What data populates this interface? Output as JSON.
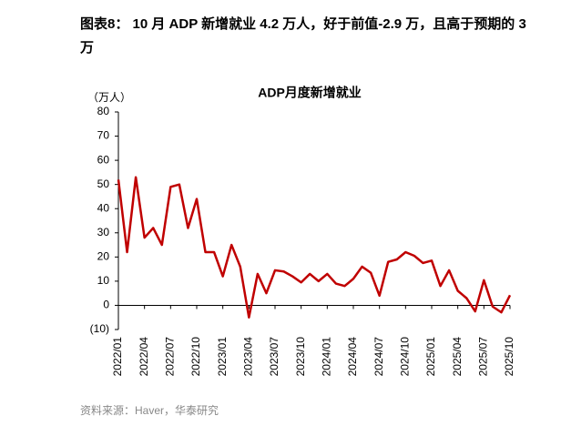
{
  "header": {
    "title": "图表8： 10 月 ADP 新增就业 4.2 万人，好于前值-2.9 万，且高于预期的 3 万"
  },
  "chart_data": {
    "type": "line",
    "title": "ADP月度新增就业",
    "y_unit": "（万人）",
    "categories": [
      "2022/01",
      null,
      null,
      "2022/04",
      null,
      null,
      "2022/07",
      null,
      null,
      "2022/10",
      null,
      null,
      "2023/01",
      null,
      null,
      "2023/04",
      null,
      null,
      "2023/07",
      null,
      null,
      "2023/10",
      null,
      null,
      "2024/01",
      null,
      null,
      "2024/04",
      null,
      null,
      "2024/07",
      null,
      null,
      "2024/10",
      null,
      null,
      "2025/01",
      null,
      null,
      "2025/04",
      null,
      null,
      "2025/07",
      null,
      null,
      "2025/10"
    ],
    "series": [
      {
        "name": "ADP月度新增就业",
        "color": "#c00000",
        "values": [
          52,
          22,
          53,
          28,
          32,
          25,
          49,
          50,
          32,
          44,
          22,
          22,
          12,
          25,
          16,
          -5,
          13,
          5,
          14.5,
          14,
          12,
          9.5,
          13,
          10,
          13,
          9,
          8,
          11,
          16,
          13.5,
          4,
          18,
          19,
          22,
          20.5,
          17.5,
          18.5,
          8,
          14.5,
          6,
          3,
          -2.5,
          10.4,
          -0.5,
          -2.9,
          4.2
        ]
      }
    ],
    "ylim": [
      -10,
      80
    ],
    "yticks": [
      {
        "value": -10,
        "label": "(10)"
      },
      0,
      10,
      20,
      30,
      40,
      50,
      60,
      70,
      80
    ]
  },
  "footer": {
    "source": "资料来源：Haver，华泰研究"
  }
}
